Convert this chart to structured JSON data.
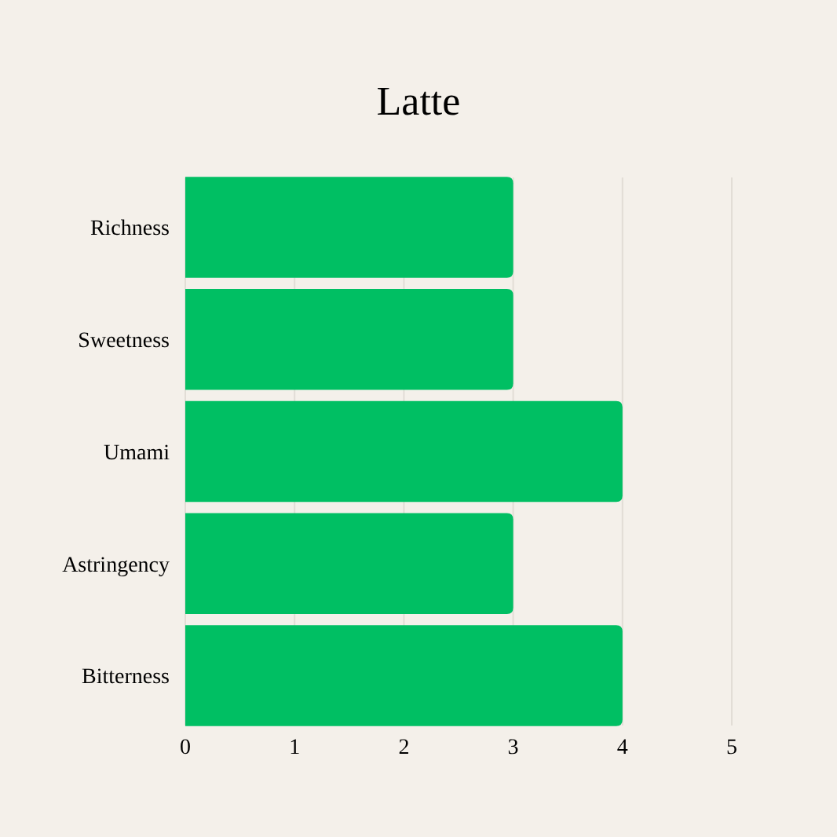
{
  "chart_data": {
    "type": "bar",
    "title": "Latte",
    "orientation": "horizontal",
    "categories": [
      "Richness",
      "Sweetness",
      "Umami",
      "Astringency",
      "Bitterness"
    ],
    "values": [
      3,
      3,
      4,
      3,
      4
    ],
    "color": "#00bf63",
    "xlim": [
      0,
      5
    ],
    "xticks": [
      0,
      1,
      2,
      3,
      4,
      5
    ],
    "grid": "x"
  }
}
